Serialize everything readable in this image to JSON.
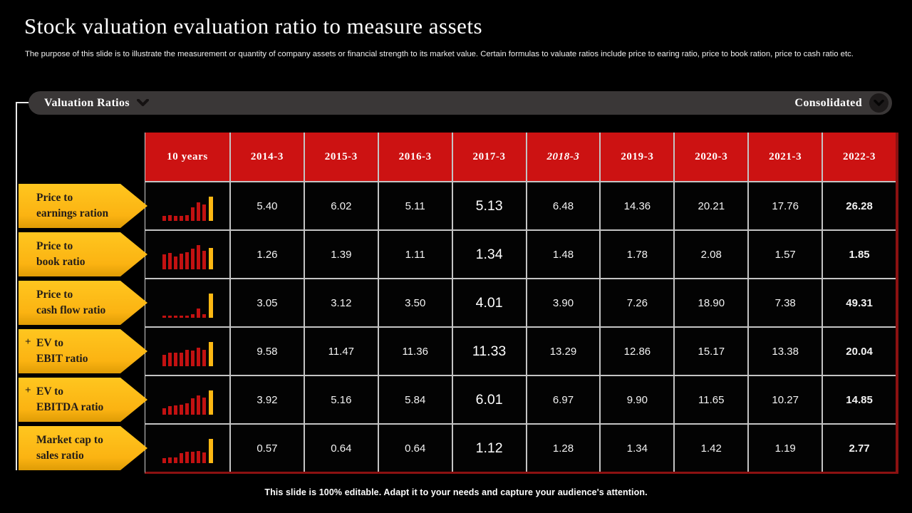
{
  "slide": {
    "title": "Stock valuation evaluation ratio to measure assets",
    "description": "The purpose of this slide is to illustrate the measurement or quantity of company assets or financial strength to its market value.  Certain formulas to valuate ratios include price to earing ratio, price to book ration, price to cash ratio etc.",
    "footer": "This slide is 100% editable. Adapt it to your needs and capture your audience's attention."
  },
  "toolbar": {
    "left_dropdown": {
      "label": "Valuation Ratios",
      "icon": "chevron-down-icon"
    },
    "right_dropdown": {
      "label": "Consolidated",
      "icon": "chevron-down-icon"
    }
  },
  "colors": {
    "background": "#000000",
    "header_red": "#cc1212",
    "border_dark_red": "#8c1111",
    "accent_yellow": "#fdb813",
    "spark_bar_red": "#c31111",
    "toolbar_gray": "#3a3737",
    "grid_line": "#c4c4c4"
  },
  "chart_data": {
    "type": "table",
    "title": "Valuation Ratios - Consolidated",
    "columns": [
      "10 years",
      "2014-3",
      "2015-3",
      "2016-3",
      "2017-3",
      "2018-3",
      "2019-3",
      "2020-3",
      "2021-3",
      "2022-3"
    ],
    "italic_column": "2018-3",
    "highlight_value_index": 3,
    "bold_value_index": 8,
    "sparkline_type": "bar",
    "rows": [
      {
        "plus": false,
        "label_lines": [
          "Price to",
          "earnings ration"
        ],
        "values": [
          "5.40",
          "6.02",
          "5.11",
          "5.13",
          "6.48",
          "14.36",
          "20.21",
          "17.76",
          "26.28"
        ]
      },
      {
        "plus": false,
        "label_lines": [
          "Price to",
          "book ratio"
        ],
        "values": [
          "1.26",
          "1.39",
          "1.11",
          "1.34",
          "1.48",
          "1.78",
          "2.08",
          "1.57",
          "1.85"
        ]
      },
      {
        "plus": false,
        "label_lines": [
          "Price to",
          "cash flow ratio"
        ],
        "values": [
          "3.05",
          "3.12",
          "3.50",
          "4.01",
          "3.90",
          "7.26",
          "18.90",
          "7.38",
          "49.31"
        ]
      },
      {
        "plus": true,
        "label_lines": [
          "EV to",
          "EBIT ratio"
        ],
        "values": [
          "9.58",
          "11.47",
          "11.36",
          "11.33",
          "13.29",
          "12.86",
          "15.17",
          "13.38",
          "20.04"
        ]
      },
      {
        "plus": true,
        "label_lines": [
          "EV to",
          "EBITDA ratio"
        ],
        "values": [
          "3.92",
          "5.16",
          "5.84",
          "6.01",
          "6.97",
          "9.90",
          "11.65",
          "10.27",
          "14.85"
        ]
      },
      {
        "plus": false,
        "label_lines": [
          "Market cap to",
          "sales ratio"
        ],
        "values": [
          "0.57",
          "0.64",
          "0.64",
          "1.12",
          "1.28",
          "1.34",
          "1.42",
          "1.19",
          "2.77"
        ]
      }
    ]
  }
}
